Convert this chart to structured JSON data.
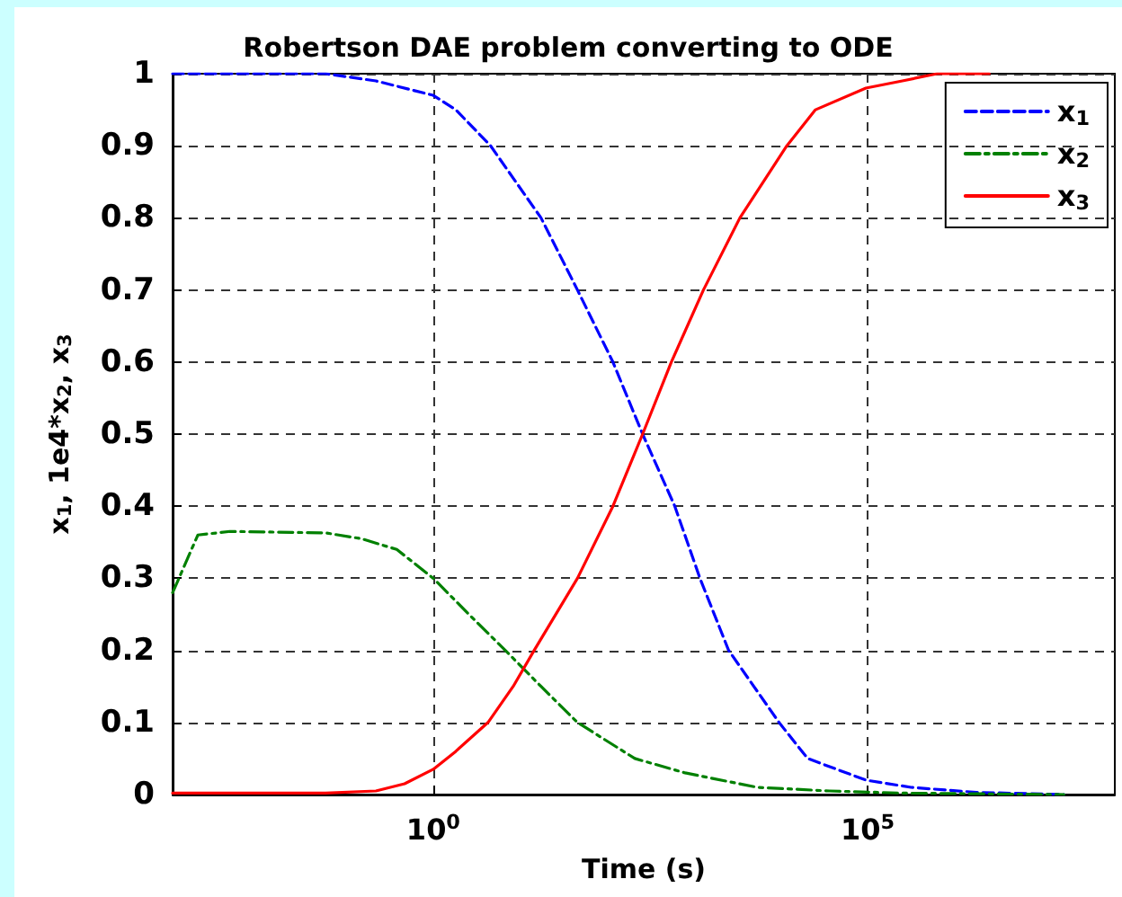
{
  "chart_data": {
    "type": "line",
    "title": "Robertson DAE problem converting to ODE",
    "xlabel": "Time (s)",
    "ylabel": "x$_{1}$, 1e4*x$_{2}$, x$_{3}$",
    "log": "x",
    "xlim": [
      0.001,
      70000000
    ],
    "xticks": [
      {
        "value": 1,
        "label": "10$^{0}$"
      },
      {
        "value": 100000,
        "label": "10$^{5}$"
      }
    ],
    "ylim": [
      0,
      1
    ],
    "yticks": [
      0,
      0.1,
      0.2,
      0.3,
      0.4,
      0.5,
      0.6,
      0.7,
      0.8,
      0.9,
      1
    ],
    "grid": true,
    "legend": "top right",
    "marker": "none",
    "series": [
      {
        "name": "x$_{1}$",
        "color": "#0000ff",
        "line_style": "dashed",
        "x": [
          0.001,
          0.0575,
          0.219,
          1,
          1.82,
          4.57,
          17.4,
          45.7,
          117,
          257,
          603,
          1175,
          2512,
          9550,
          20400,
          95500,
          316000,
          1780000,
          18200000
        ],
        "values": [
          1,
          1,
          0.99,
          0.97,
          0.95,
          0.9,
          0.8,
          0.7,
          0.6,
          0.5,
          0.4,
          0.3,
          0.2,
          0.1,
          0.05,
          0.02,
          0.01,
          0.003,
          0
        ]
      },
      {
        "name": "x$_{2}$",
        "color": "#008000",
        "line_style": "dashdot",
        "x": [
          0.001,
          0.00195,
          0.00457,
          0.0575,
          0.148,
          0.38,
          1,
          2.57,
          6.76,
          17.4,
          45.7,
          209,
          794,
          5370,
          36300,
          251000,
          18200000
        ],
        "values": [
          0.28,
          0.36,
          0.365,
          0.363,
          0.355,
          0.34,
          0.3,
          0.25,
          0.2,
          0.15,
          0.1,
          0.05,
          0.03,
          0.01,
          0.005,
          0.002,
          0
        ]
      },
      {
        "name": "x$_{3}$",
        "color": "#ff0000",
        "line_style": "solid",
        "x": [
          0.001,
          0.0575,
          0.219,
          0.468,
          1,
          1.82,
          4.27,
          8.32,
          14.5,
          45.7,
          117,
          257,
          550,
          1288,
          3388,
          11750,
          25100,
          95500,
          251000,
          631000,
          2510000
        ],
        "values": [
          0.002,
          0.002,
          0.005,
          0.015,
          0.035,
          0.06,
          0.1,
          0.15,
          0.2,
          0.3,
          0.4,
          0.5,
          0.6,
          0.7,
          0.8,
          0.9,
          0.95,
          0.98,
          0.99,
          1,
          1
        ]
      }
    ]
  }
}
